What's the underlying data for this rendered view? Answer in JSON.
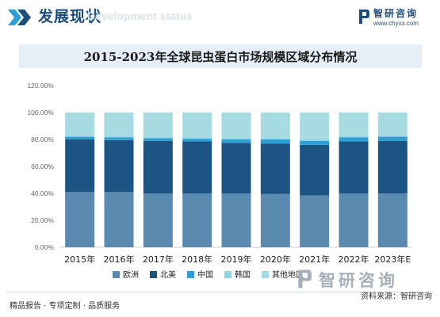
{
  "header": {
    "title": "发展现状",
    "subtitle_en": "Development status",
    "brand_name": "智研咨询",
    "brand_url": "www.chyxx.com"
  },
  "footer": {
    "left_text": "精品报告 · 专项定制 · 品质服务",
    "brand": "智研咨询",
    "source": "资料来源：智研咨询"
  },
  "colors": {
    "europe": "#5b8ab0",
    "north_america": "#1c5584",
    "china": "#2e9fd2",
    "korea": "#8ed3ea",
    "others": "#a7dbe2",
    "accent": "#1c4e80"
  },
  "chart_data": {
    "type": "bar",
    "stacked": true,
    "title": "2015-2023年全球昆虫蛋白市场规模区域分布情况",
    "categories": [
      "2015年",
      "2016年",
      "2017年",
      "2018年",
      "2019年",
      "2020年",
      "2021年",
      "2022年",
      "2023年E"
    ],
    "series": [
      {
        "name": "欧洲",
        "color": "#5b8ab0",
        "values": [
          41,
          41,
          40,
          40,
          40,
          39.5,
          38.5,
          40,
          40
        ]
      },
      {
        "name": "北美",
        "color": "#1c5584",
        "values": [
          39,
          38.5,
          39,
          38.5,
          37.5,
          37.5,
          37.5,
          38.5,
          39
        ]
      },
      {
        "name": "中国",
        "color": "#2e9fd2",
        "values": [
          2,
          2,
          2,
          2,
          2.5,
          3,
          3,
          3,
          3
        ]
      },
      {
        "name": "韩国",
        "color": "#8ed3ea",
        "values": [
          1,
          1,
          1,
          1,
          1,
          1,
          1,
          1,
          1
        ]
      },
      {
        "name": "其他地区",
        "color": "#a7dbe2",
        "values": [
          17,
          17.5,
          18,
          18.5,
          19,
          19,
          20,
          17.5,
          17
        ]
      }
    ],
    "y_ticks": [
      "0.00%",
      "20.00%",
      "40.00%",
      "60.00%",
      "80.00%",
      "100.00%",
      "120.00%"
    ],
    "ylim": [
      0,
      120
    ],
    "grid": false,
    "legend_position": "bottom"
  }
}
